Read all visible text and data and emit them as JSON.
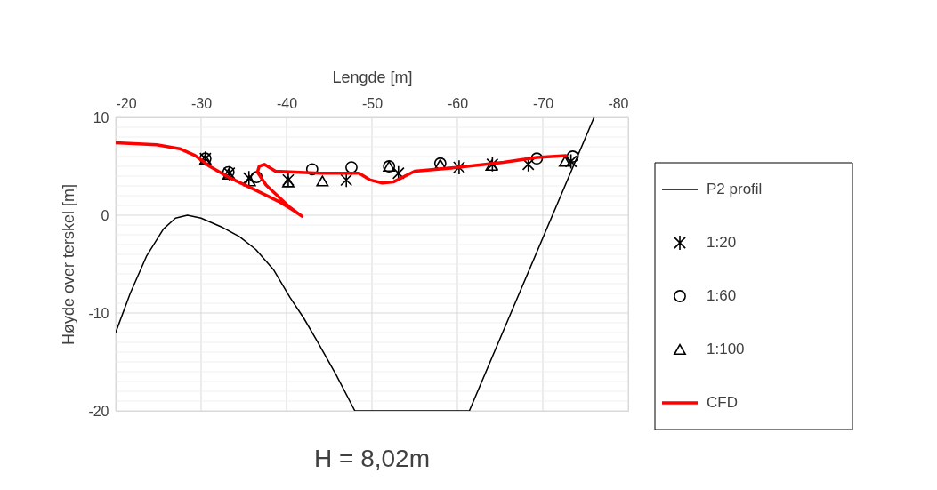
{
  "chart_data": {
    "type": "line",
    "xlabel": "Lengde [m]",
    "ylabel": "Høyde over terskel [m]",
    "annotations": [
      "H = 8,02m"
    ],
    "xlim": [
      -20,
      -80
    ],
    "xticks": [
      -20,
      -30,
      -40,
      -50,
      -60,
      -70,
      -80
    ],
    "ylim": [
      -20,
      10
    ],
    "yticks": [
      -20,
      {
        "value": -19,
        "label": null
      },
      {
        "value": -18,
        "label": null
      },
      {
        "value": -17,
        "label": null
      },
      {
        "value": -16,
        "label": null
      },
      {
        "value": -15,
        "label": null
      },
      {
        "value": -14,
        "label": null
      },
      {
        "value": -13,
        "label": null
      },
      {
        "value": -12,
        "label": null
      },
      {
        "value": -11,
        "label": null
      },
      -10,
      {
        "value": -9,
        "label": null
      },
      {
        "value": -8,
        "label": null
      },
      {
        "value": -7,
        "label": null
      },
      {
        "value": -6,
        "label": null
      },
      {
        "value": -5,
        "label": null
      },
      {
        "value": -4,
        "label": null
      },
      {
        "value": -3,
        "label": null
      },
      {
        "value": -2,
        "label": null
      },
      {
        "value": -1,
        "label": null
      },
      0,
      {
        "value": 1,
        "label": null
      },
      {
        "value": 2,
        "label": null
      },
      {
        "value": 3,
        "label": null
      },
      {
        "value": 4,
        "label": null
      },
      {
        "value": 5,
        "label": null
      },
      {
        "value": 6,
        "label": null
      },
      {
        "value": 7,
        "label": null
      },
      {
        "value": 8,
        "label": null
      },
      {
        "value": 9,
        "label": null
      },
      10
    ],
    "grid": true,
    "legend": "right",
    "series": [
      {
        "name": "P2 profil",
        "color": "#000000",
        "marker": "none",
        "x": [
          -20,
          -21.7,
          -23.6,
          -25.6,
          -27,
          -28.4,
          -30,
          -32.4,
          -34.5,
          -36.4,
          -38.5,
          -40.4,
          -42,
          -43.6,
          -45.8,
          -48,
          -61.4,
          -76
        ],
        "values": [
          -12,
          -8,
          -4.2,
          -1.4,
          -0.3,
          0,
          -0.3,
          -1.2,
          -2.2,
          -3.5,
          -5.6,
          -8.4,
          -10.5,
          -12.9,
          -16.3,
          -20,
          -20,
          10
        ]
      },
      {
        "name": "1:20",
        "type": "scatter",
        "color": "#000000",
        "marker": "cross",
        "x": [
          -30.5,
          -33.3,
          -35.6,
          -40.2,
          -47,
          -53.1,
          -60.2,
          -64.1,
          -68.3,
          -73.3
        ],
        "values": [
          5.8,
          4.3,
          3.8,
          3.6,
          3.6,
          4.3,
          4.9,
          5.2,
          5.2,
          5.5
        ]
      },
      {
        "name": "1:60",
        "type": "scatter",
        "color": "#000000",
        "marker": "circle",
        "x": [
          -30.5,
          -33.2,
          -36.5,
          -43,
          -47.6,
          -52,
          -58,
          -69.3,
          -73.5
        ],
        "values": [
          5.8,
          4.4,
          3.9,
          4.7,
          4.9,
          5.0,
          5.3,
          5.8,
          6.0
        ]
      },
      {
        "name": "1:100",
        "type": "scatter",
        "color": "#000000",
        "marker": "triangle",
        "x": [
          -30.5,
          -33.2,
          -35.7,
          -40.2,
          -44.2,
          -52,
          -58,
          -64,
          -72.6
        ],
        "values": [
          5.7,
          4.2,
          3.5,
          3.4,
          3.5,
          5.0,
          5.2,
          5.1,
          5.5
        ]
      },
      {
        "name": "CFD",
        "color": "#ff0000",
        "marker": "none",
        "x": [
          -20,
          -24.8,
          -27.5,
          -29.3,
          -31,
          -33.4,
          -36.3,
          -39.1,
          -40.8,
          -41.8,
          -40.4,
          -37.6,
          -36.6,
          -36.8,
          -37.4,
          -38.7,
          -43.9,
          -48.5,
          -49.8,
          -51.2,
          -52.5,
          -55,
          -60.2,
          -65.4,
          -69.3,
          -72.7
        ],
        "values": [
          7.4,
          7.2,
          6.8,
          6.1,
          5.0,
          3.8,
          2.6,
          1.4,
          0.5,
          -0.1,
          0.8,
          3.1,
          4.4,
          5.0,
          5.2,
          4.5,
          4.3,
          4.3,
          3.6,
          3.3,
          3.4,
          4.5,
          4.9,
          5.4,
          5.9,
          6.1
        ]
      }
    ]
  }
}
